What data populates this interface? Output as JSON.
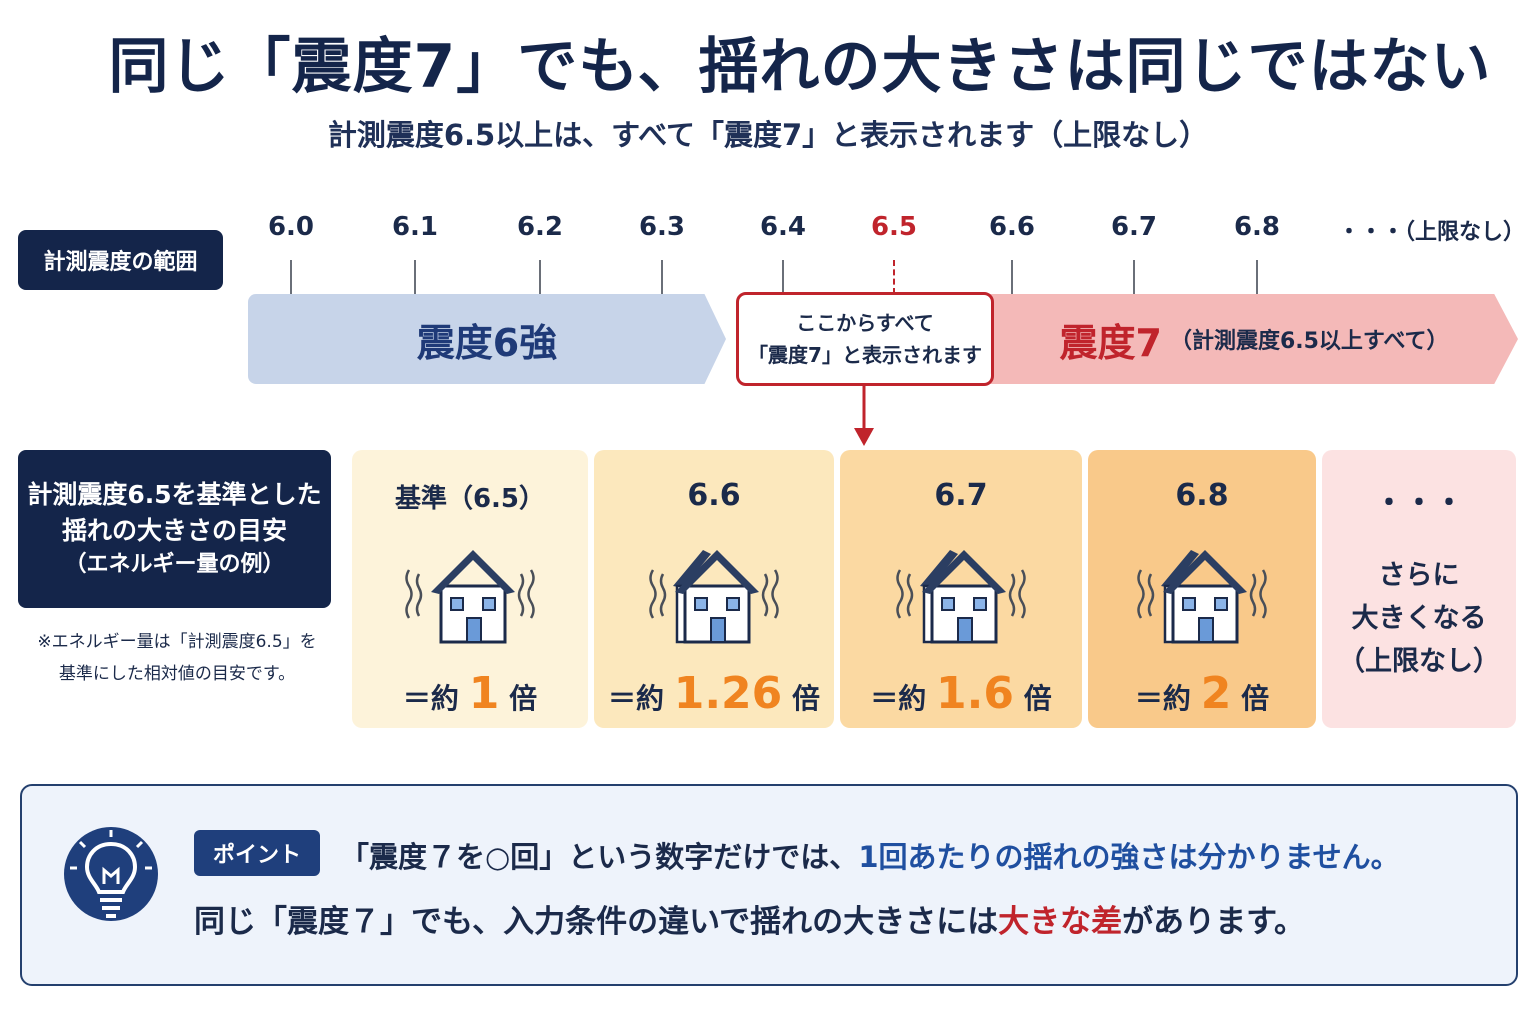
{
  "title": "同じ「震度7」でも、揺れの大きさは同じではない",
  "subtitle": "計測震度6.5以上は、すべて「震度7」と表示されます（上限なし）",
  "range_label": "計測震度の範囲",
  "ticks": [
    "6.0",
    "6.1",
    "6.2",
    "6.3",
    "6.4",
    "6.5",
    "6.6",
    "6.7",
    "6.8"
  ],
  "tick_end": "・・・（上限なし）",
  "highlight_tick": "6.5",
  "shindo6_label": "震度6強",
  "shindo7_label": "震度7",
  "shindo7_note": "（計測震度6.5以上すべて）",
  "callout": {
    "line1": "ここからすべて",
    "line2": "「震度7」と表示されます"
  },
  "scale_label": {
    "line1": "計測震度6.5を基準とした",
    "line2": "揺れの大きさの目安",
    "line3": "（エネルギー量の例）"
  },
  "note": {
    "line1": "※エネルギー量は「計測震度6.5」を",
    "line2": "基準にした相対値の目安です。"
  },
  "cells": [
    {
      "head": "基準（6.5）",
      "prefix": "＝約",
      "value": "1",
      "suffix": "倍",
      "bg": "#fdf3da"
    },
    {
      "head": "6.6",
      "prefix": "＝約",
      "value": "1.26",
      "suffix": "倍",
      "bg": "#fce8bd"
    },
    {
      "head": "6.7",
      "prefix": "＝約",
      "value": "1.6",
      "suffix": "倍",
      "bg": "#fbd9a2"
    },
    {
      "head": "6.8",
      "prefix": "＝約",
      "value": "2",
      "suffix": "倍",
      "bg": "#f9c98a"
    }
  ],
  "more_cell": {
    "head": "・・・",
    "line1": "さらに",
    "line2": "大きくなる",
    "line3": "（上限なし）",
    "bg": "#fce2e2"
  },
  "point": {
    "badge": "ポイント",
    "line1_a": "「震度７を○回」という数字だけでは、",
    "line1_b": "1回あたりの揺れの強さは分かりません。",
    "line2_a": "同じ「震度７」でも、入力条件の違いで揺れの大きさには",
    "line2_b": "大きな差",
    "line2_c": "があります。"
  },
  "colors": {
    "navy": "#14254a",
    "accent_red": "#c0242c",
    "accent_orange": "#f08420",
    "accent_blue": "#1f4fa0"
  }
}
